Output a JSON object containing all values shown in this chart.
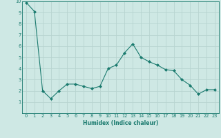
{
  "title": "",
  "xlabel": "Humidex (Indice chaleur)",
  "ylabel": "",
  "x": [
    0,
    1,
    2,
    3,
    4,
    5,
    6,
    7,
    8,
    9,
    10,
    11,
    12,
    13,
    14,
    15,
    16,
    17,
    18,
    19,
    20,
    21,
    22,
    23
  ],
  "y": [
    9.9,
    9.1,
    2.0,
    1.3,
    2.0,
    2.6,
    2.6,
    2.4,
    2.2,
    2.4,
    4.0,
    4.3,
    5.4,
    6.2,
    5.0,
    4.6,
    4.3,
    3.9,
    3.8,
    3.0,
    2.5,
    1.7,
    2.1,
    2.1
  ],
  "xlim": [
    -0.5,
    23.5
  ],
  "ylim": [
    0,
    10
  ],
  "yticks": [
    1,
    2,
    3,
    4,
    5,
    6,
    7,
    8,
    9,
    10
  ],
  "xticks": [
    0,
    1,
    2,
    3,
    4,
    5,
    6,
    7,
    8,
    9,
    10,
    11,
    12,
    13,
    14,
    15,
    16,
    17,
    18,
    19,
    20,
    21,
    22,
    23
  ],
  "line_color": "#1a7a6e",
  "marker_color": "#1a7a6e",
  "bg_color": "#cee8e4",
  "grid_color": "#b8d4d0",
  "axis_label_color": "#1a7a6e",
  "tick_color": "#1a7a6e",
  "xlabel_fontsize": 5.5,
  "tick_fontsize": 4.8
}
